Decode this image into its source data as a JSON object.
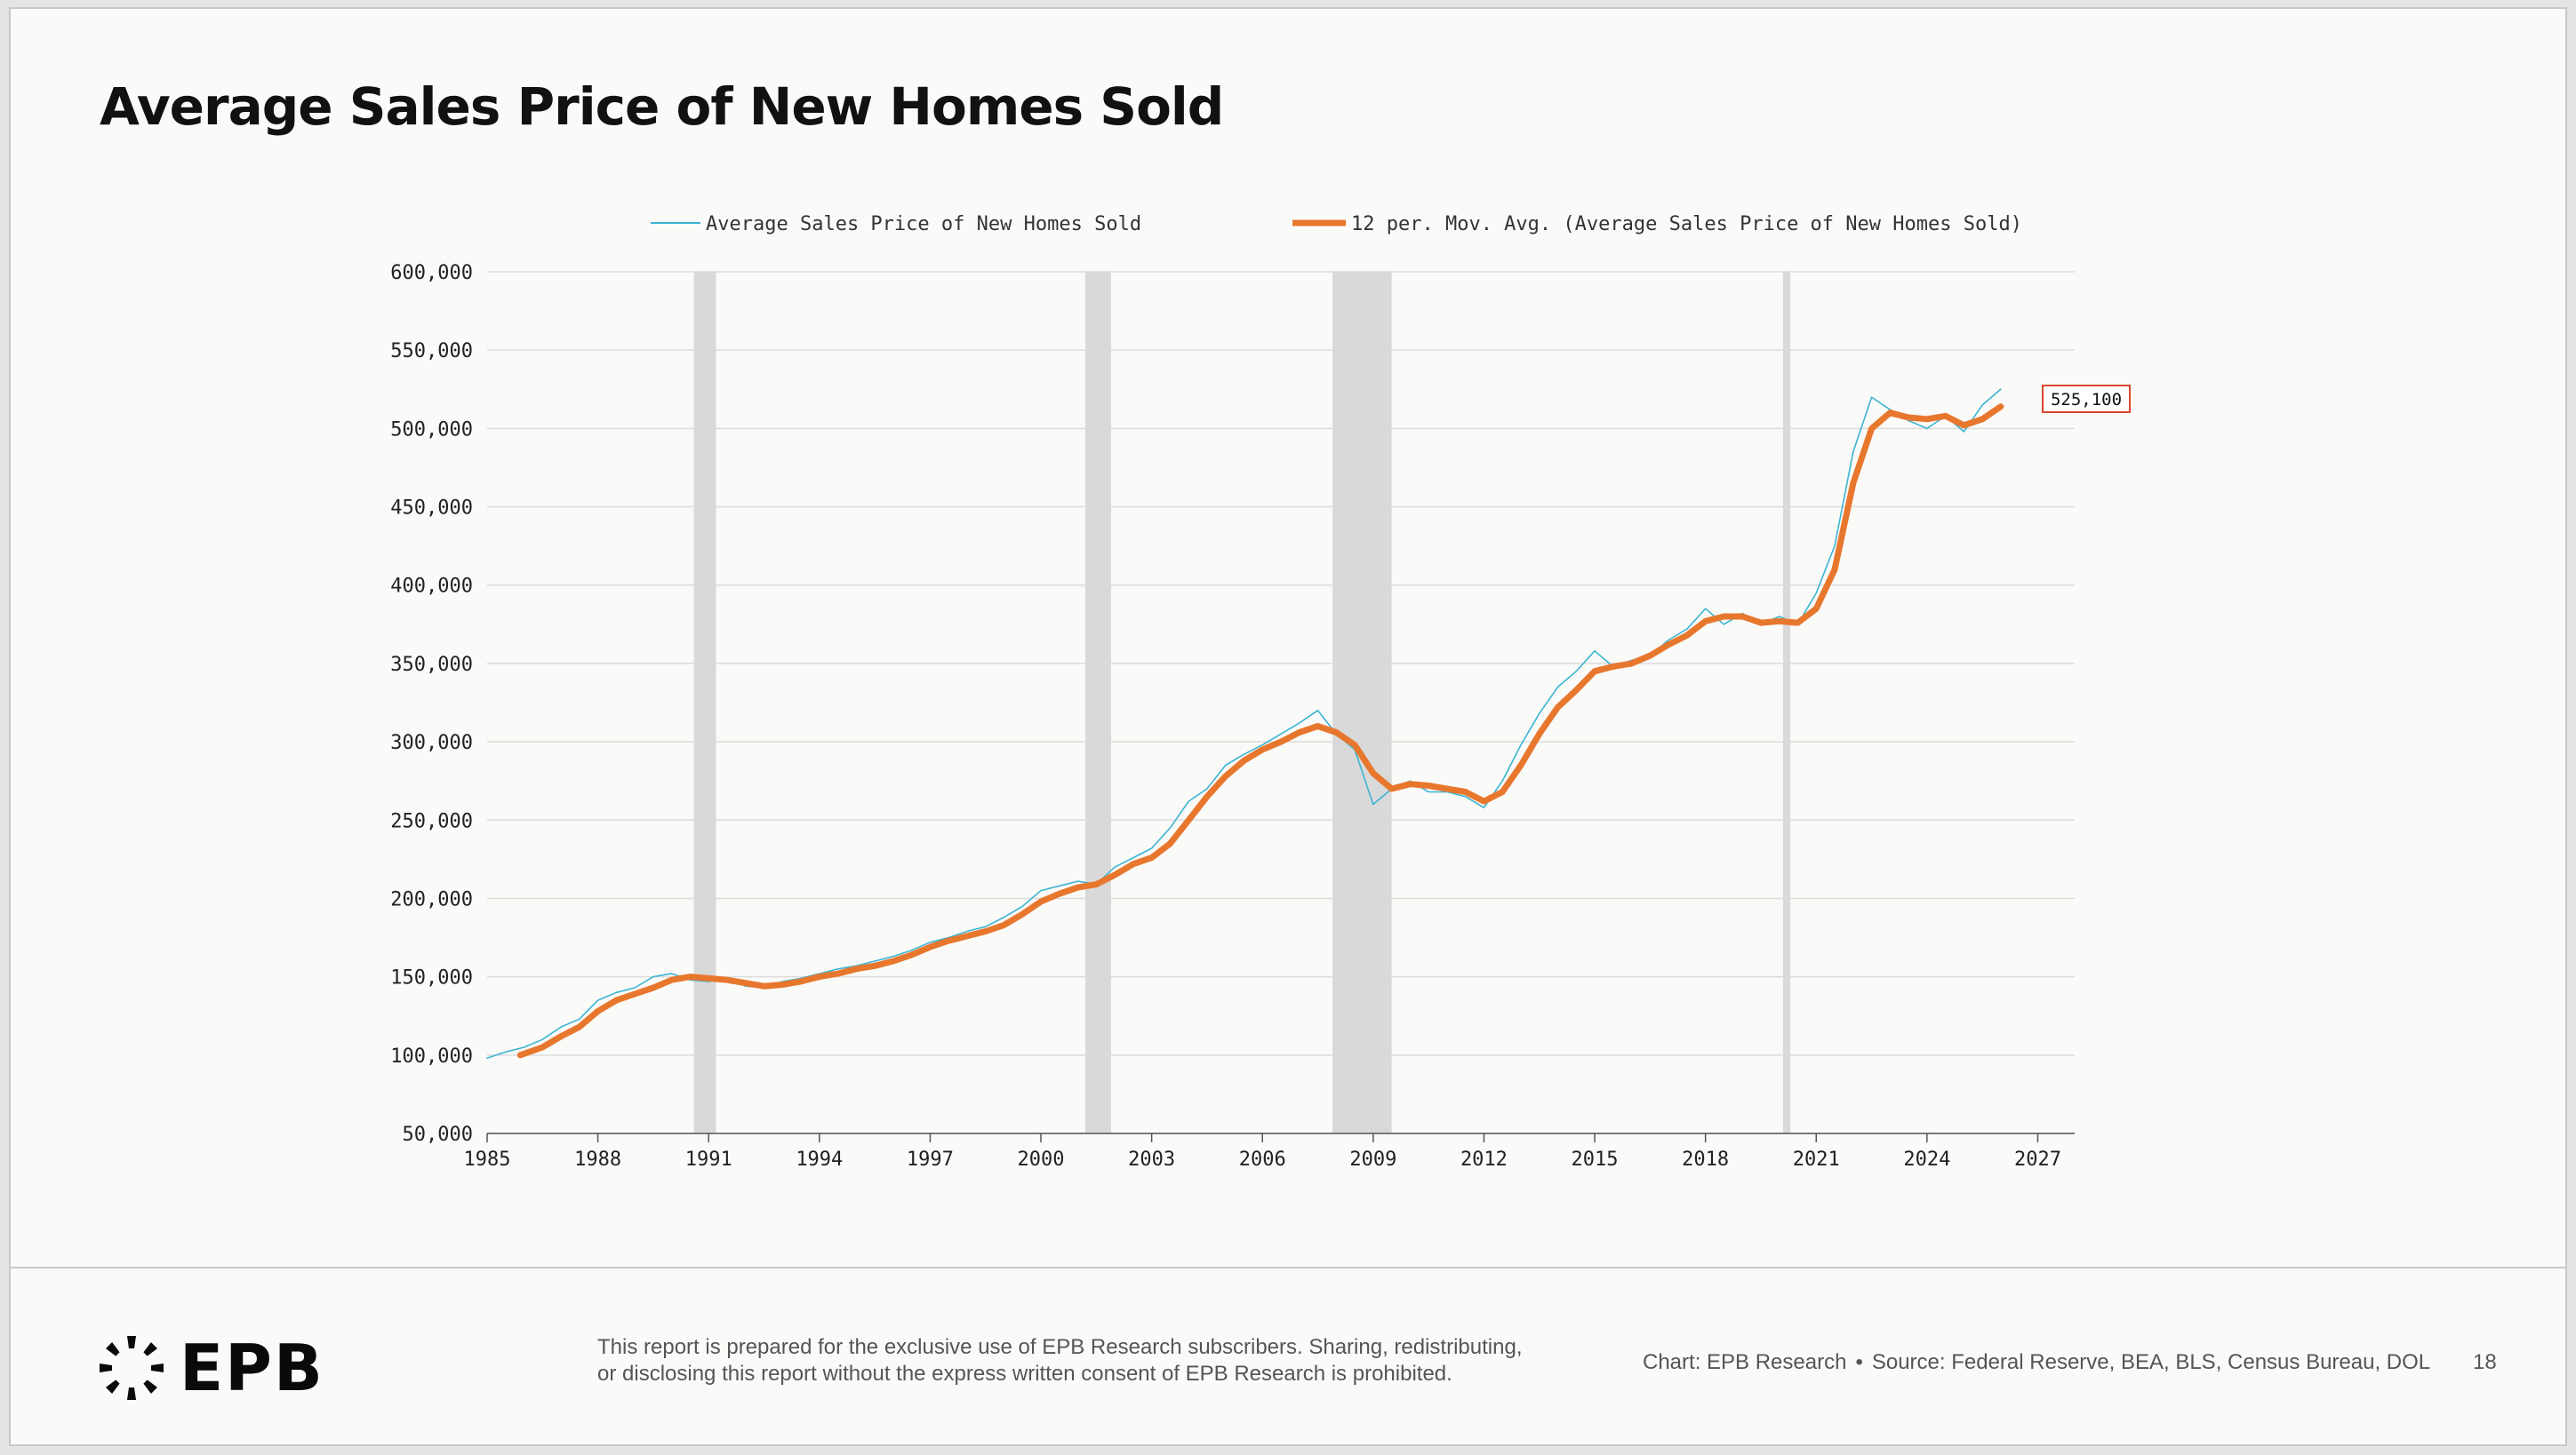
{
  "title": "Average Sales Price of New Homes Sold",
  "legend": {
    "series1": "Average Sales Price of New Homes Sold",
    "series2": "12 per. Mov. Avg. (Average Sales Price of New Homes Sold)"
  },
  "last_value_label": "525,100",
  "footer": {
    "logo_text": "EPB",
    "disclaimer_line1": "This report is prepared for the exclusive use of EPB Research subscribers. Sharing, redistributing,",
    "disclaimer_line2": "or disclosing this report without the express written consent of EPB Research is prohibited.",
    "credit_chart": "Chart: EPB Research",
    "credit_source": "Source: Federal Reserve, BEA, BLS, Census Bureau, DOL",
    "page_number": "18"
  },
  "colors": {
    "raw_series": "#3cb4d2",
    "moving_average": "#e8772e",
    "recession_band": "#d9d9d9",
    "callout_border": "#d9482f"
  },
  "chart_data": {
    "type": "line",
    "xlim": [
      1985,
      2028
    ],
    "ylim": [
      50000,
      600000
    ],
    "x_ticks": [
      1985,
      1988,
      1991,
      1994,
      1997,
      2000,
      2003,
      2006,
      2009,
      2012,
      2015,
      2018,
      2021,
      2024,
      2027
    ],
    "y_ticks": [
      50000,
      100000,
      150000,
      200000,
      250000,
      300000,
      350000,
      400000,
      450000,
      500000,
      550000,
      600000
    ],
    "y_tick_labels": [
      "50,000",
      "100,000",
      "150,000",
      "200,000",
      "250,000",
      "300,000",
      "350,000",
      "400,000",
      "450,000",
      "500,000",
      "550,000",
      "600,000"
    ],
    "grid": true,
    "legend_position": "top",
    "recessions": [
      [
        1990.6,
        1991.2
      ],
      [
        2001.2,
        2001.9
      ],
      [
        2007.9,
        2009.5
      ],
      [
        2020.1,
        2020.3
      ]
    ],
    "series": [
      {
        "name": "Average Sales Price of New Homes Sold",
        "style": "thin",
        "x": [
          1985.0,
          1985.5,
          1986.0,
          1986.5,
          1987.0,
          1987.5,
          1988.0,
          1988.5,
          1989.0,
          1989.5,
          1990.0,
          1990.5,
          1991.0,
          1991.5,
          1992.0,
          1992.5,
          1993.0,
          1993.5,
          1994.0,
          1994.5,
          1995.0,
          1995.5,
          1996.0,
          1996.5,
          1997.0,
          1997.5,
          1998.0,
          1998.5,
          1999.0,
          1999.5,
          2000.0,
          2000.5,
          2001.0,
          2001.5,
          2002.0,
          2002.5,
          2003.0,
          2003.5,
          2004.0,
          2004.5,
          2005.0,
          2005.5,
          2006.0,
          2006.5,
          2007.0,
          2007.5,
          2008.0,
          2008.5,
          2009.0,
          2009.5,
          2010.0,
          2010.5,
          2011.0,
          2011.5,
          2012.0,
          2012.5,
          2013.0,
          2013.5,
          2014.0,
          2014.5,
          2015.0,
          2015.5,
          2016.0,
          2016.5,
          2017.0,
          2017.5,
          2018.0,
          2018.5,
          2019.0,
          2019.5,
          2020.0,
          2020.5,
          2021.0,
          2021.5,
          2022.0,
          2022.5,
          2023.0,
          2023.5,
          2024.0,
          2024.5,
          2025.0,
          2025.5,
          2026.0
        ],
        "values": [
          98000,
          102000,
          105000,
          110000,
          118000,
          123000,
          135000,
          140000,
          143000,
          150000,
          152000,
          148000,
          147000,
          149000,
          144000,
          143000,
          147000,
          149000,
          152000,
          155000,
          157000,
          160000,
          163000,
          167000,
          172000,
          175000,
          179000,
          182000,
          188000,
          195000,
          205000,
          208000,
          211000,
          209000,
          220000,
          226000,
          232000,
          245000,
          262000,
          270000,
          285000,
          292000,
          298000,
          305000,
          312000,
          320000,
          305000,
          295000,
          260000,
          270000,
          275000,
          268000,
          268000,
          265000,
          258000,
          275000,
          298000,
          318000,
          335000,
          345000,
          358000,
          348000,
          352000,
          355000,
          365000,
          372000,
          385000,
          375000,
          382000,
          375000,
          380000,
          375000,
          395000,
          425000,
          485000,
          520000,
          512000,
          505000,
          500000,
          508000,
          498000,
          515000,
          525100
        ]
      },
      {
        "name": "12 per. Mov. Avg. (Average Sales Price of New Homes Sold)",
        "style": "thick",
        "x": [
          1985.9,
          1986.5,
          1987.0,
          1987.5,
          1988.0,
          1988.5,
          1989.0,
          1989.5,
          1990.0,
          1990.5,
          1991.0,
          1991.5,
          1992.0,
          1992.5,
          1993.0,
          1993.5,
          1994.0,
          1994.5,
          1995.0,
          1995.5,
          1996.0,
          1996.5,
          1997.0,
          1997.5,
          1998.0,
          1998.5,
          1999.0,
          1999.5,
          2000.0,
          2000.5,
          2001.0,
          2001.5,
          2002.0,
          2002.5,
          2003.0,
          2003.5,
          2004.0,
          2004.5,
          2005.0,
          2005.5,
          2006.0,
          2006.5,
          2007.0,
          2007.5,
          2008.0,
          2008.5,
          2009.0,
          2009.5,
          2010.0,
          2010.5,
          2011.0,
          2011.5,
          2012.0,
          2012.5,
          2013.0,
          2013.5,
          2014.0,
          2014.5,
          2015.0,
          2015.5,
          2016.0,
          2016.5,
          2017.0,
          2017.5,
          2018.0,
          2018.5,
          2019.0,
          2019.5,
          2020.0,
          2020.5,
          2021.0,
          2021.5,
          2022.0,
          2022.5,
          2023.0,
          2023.5,
          2024.0,
          2024.5,
          2025.0,
          2025.5,
          2026.0
        ],
        "values": [
          100000,
          105000,
          112000,
          118000,
          128000,
          135000,
          139000,
          143000,
          148000,
          150000,
          149000,
          148000,
          146000,
          144000,
          145000,
          147000,
          150000,
          152000,
          155000,
          157000,
          160000,
          164000,
          169000,
          173000,
          176000,
          179000,
          183000,
          190000,
          198000,
          203000,
          207000,
          209000,
          215000,
          222000,
          226000,
          235000,
          250000,
          265000,
          278000,
          288000,
          295000,
          300000,
          306000,
          310000,
          306000,
          298000,
          280000,
          270000,
          273000,
          272000,
          270000,
          268000,
          262000,
          268000,
          285000,
          305000,
          322000,
          333000,
          345000,
          348000,
          350000,
          355000,
          362000,
          368000,
          377000,
          380000,
          380000,
          376000,
          377000,
          376000,
          385000,
          410000,
          465000,
          500000,
          510000,
          507000,
          506000,
          508000,
          502000,
          506000,
          514000
        ]
      }
    ]
  }
}
